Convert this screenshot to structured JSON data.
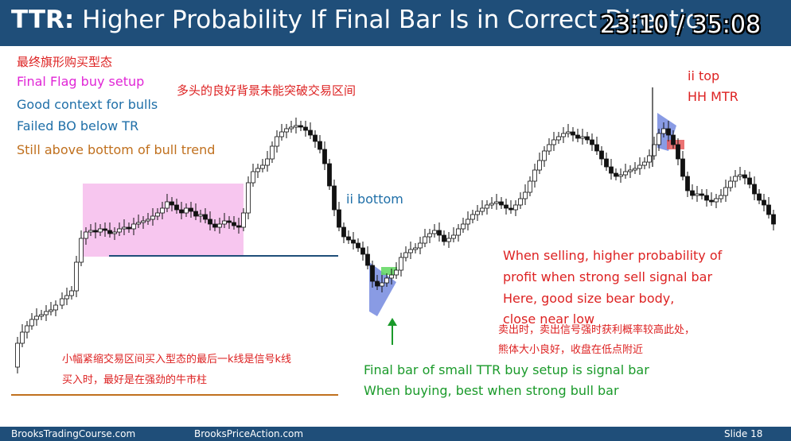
{
  "slide": {
    "title_prefix": "TTR:",
    "title_rest": " Higher Probability If Final Bar Is in Correct Direction",
    "timer": "23:10 / 35:08"
  },
  "annotations": {
    "cn_setup": "最终旗形购买型态",
    "final_flag": "Final Flag buy setup",
    "good_context": "Good context for bulls",
    "failed_bo": "Failed BO below TR",
    "still_above": "Still above bottom of bull trend",
    "cn_failed": "多头的良好背景未能突破交易区间",
    "ii_bottom": "ii bottom",
    "ii_top": "ii top",
    "hh_mtr": "HH MTR",
    "selling_1": "When selling, higher probability of",
    "selling_2": "profit when strong sell signal bar",
    "selling_3": "Here, good size bear body,",
    "selling_4": "close near low",
    "cn_sell_1": "卖出时，卖出信号强时获利概率较高此处，",
    "cn_sell_2": "熊体大小良好，收盘在低点附近",
    "cn_buy_1": "小幅紧缩交易区间买入型态的最后一k线是信号k线",
    "cn_buy_2": "买入时，最好是在强劲的牛市柱",
    "final_bar": "Final bar of small TTR buy setup is signal bar",
    "when_buying": "When buying, best when strong bull bar",
    "arrow": "↑"
  },
  "footer": {
    "left": "BrooksTradingCourse.com",
    "center": "BrooksPriceAction.com",
    "right": "Slide  18"
  },
  "colors": {
    "header": "#1f4e79",
    "magenta": "#e026d6",
    "blue": "#1f6fa8",
    "orange": "#c0701e",
    "red": "#dd2222",
    "green": "#1a9a2a",
    "range_box": "#f7c6ef",
    "wedge": "#4a66d6"
  }
}
